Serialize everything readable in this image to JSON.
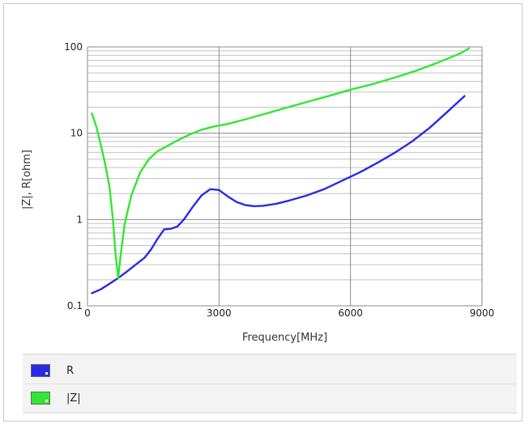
{
  "chart_data": {
    "type": "line",
    "title": "",
    "xlabel": "Frequency[MHz]",
    "ylabel": "|Z|, R[ohm]",
    "xlim": [
      0,
      9000
    ],
    "ylim": [
      0.1,
      100
    ],
    "yscale": "log",
    "grid": true,
    "legend_position": "bottom",
    "x_ticks": [
      {
        "value": 0,
        "label": "0"
      },
      {
        "value": 3000,
        "label": "3000"
      },
      {
        "value": 6000,
        "label": "6000"
      },
      {
        "value": 9000,
        "label": "9000"
      }
    ],
    "y_ticks": [
      {
        "value": 0.1,
        "label": "0.1"
      },
      {
        "value": 1,
        "label": "1"
      },
      {
        "value": 10,
        "label": "10"
      },
      {
        "value": 100,
        "label": "100"
      }
    ],
    "series": [
      {
        "name": "R",
        "color": "#2a2ae6",
        "points": [
          [
            100,
            0.14
          ],
          [
            300,
            0.155
          ],
          [
            500,
            0.18
          ],
          [
            700,
            0.21
          ],
          [
            900,
            0.25
          ],
          [
            1100,
            0.3
          ],
          [
            1300,
            0.36
          ],
          [
            1450,
            0.45
          ],
          [
            1600,
            0.6
          ],
          [
            1750,
            0.77
          ],
          [
            1900,
            0.78
          ],
          [
            2050,
            0.83
          ],
          [
            2200,
            1.0
          ],
          [
            2400,
            1.4
          ],
          [
            2600,
            1.9
          ],
          [
            2800,
            2.25
          ],
          [
            3000,
            2.2
          ],
          [
            3200,
            1.85
          ],
          [
            3400,
            1.6
          ],
          [
            3600,
            1.47
          ],
          [
            3800,
            1.43
          ],
          [
            4000,
            1.44
          ],
          [
            4300,
            1.52
          ],
          [
            4600,
            1.66
          ],
          [
            5000,
            1.9
          ],
          [
            5400,
            2.25
          ],
          [
            5800,
            2.8
          ],
          [
            6200,
            3.5
          ],
          [
            6600,
            4.5
          ],
          [
            7000,
            5.9
          ],
          [
            7400,
            8.0
          ],
          [
            7800,
            11.5
          ],
          [
            8200,
            17.5
          ],
          [
            8600,
            27
          ]
        ]
      },
      {
        "name": "|Z|",
        "color": "#33e633",
        "points": [
          [
            100,
            17
          ],
          [
            200,
            12
          ],
          [
            300,
            7.5
          ],
          [
            400,
            4.5
          ],
          [
            500,
            2.4
          ],
          [
            580,
            1.0
          ],
          [
            640,
            0.4
          ],
          [
            700,
            0.21
          ],
          [
            760,
            0.4
          ],
          [
            850,
            0.9
          ],
          [
            1000,
            1.9
          ],
          [
            1200,
            3.5
          ],
          [
            1400,
            5.0
          ],
          [
            1600,
            6.2
          ],
          [
            1800,
            7.0
          ],
          [
            2000,
            8.0
          ],
          [
            2300,
            9.5
          ],
          [
            2600,
            11.0
          ],
          [
            2900,
            12.0
          ],
          [
            3200,
            12.8
          ],
          [
            3600,
            14.5
          ],
          [
            4000,
            16.5
          ],
          [
            4500,
            19.5
          ],
          [
            5000,
            23
          ],
          [
            5500,
            27
          ],
          [
            6000,
            32
          ],
          [
            6500,
            37
          ],
          [
            7000,
            44
          ],
          [
            7500,
            53
          ],
          [
            8000,
            66
          ],
          [
            8500,
            84
          ],
          [
            8700,
            96
          ]
        ]
      }
    ]
  }
}
